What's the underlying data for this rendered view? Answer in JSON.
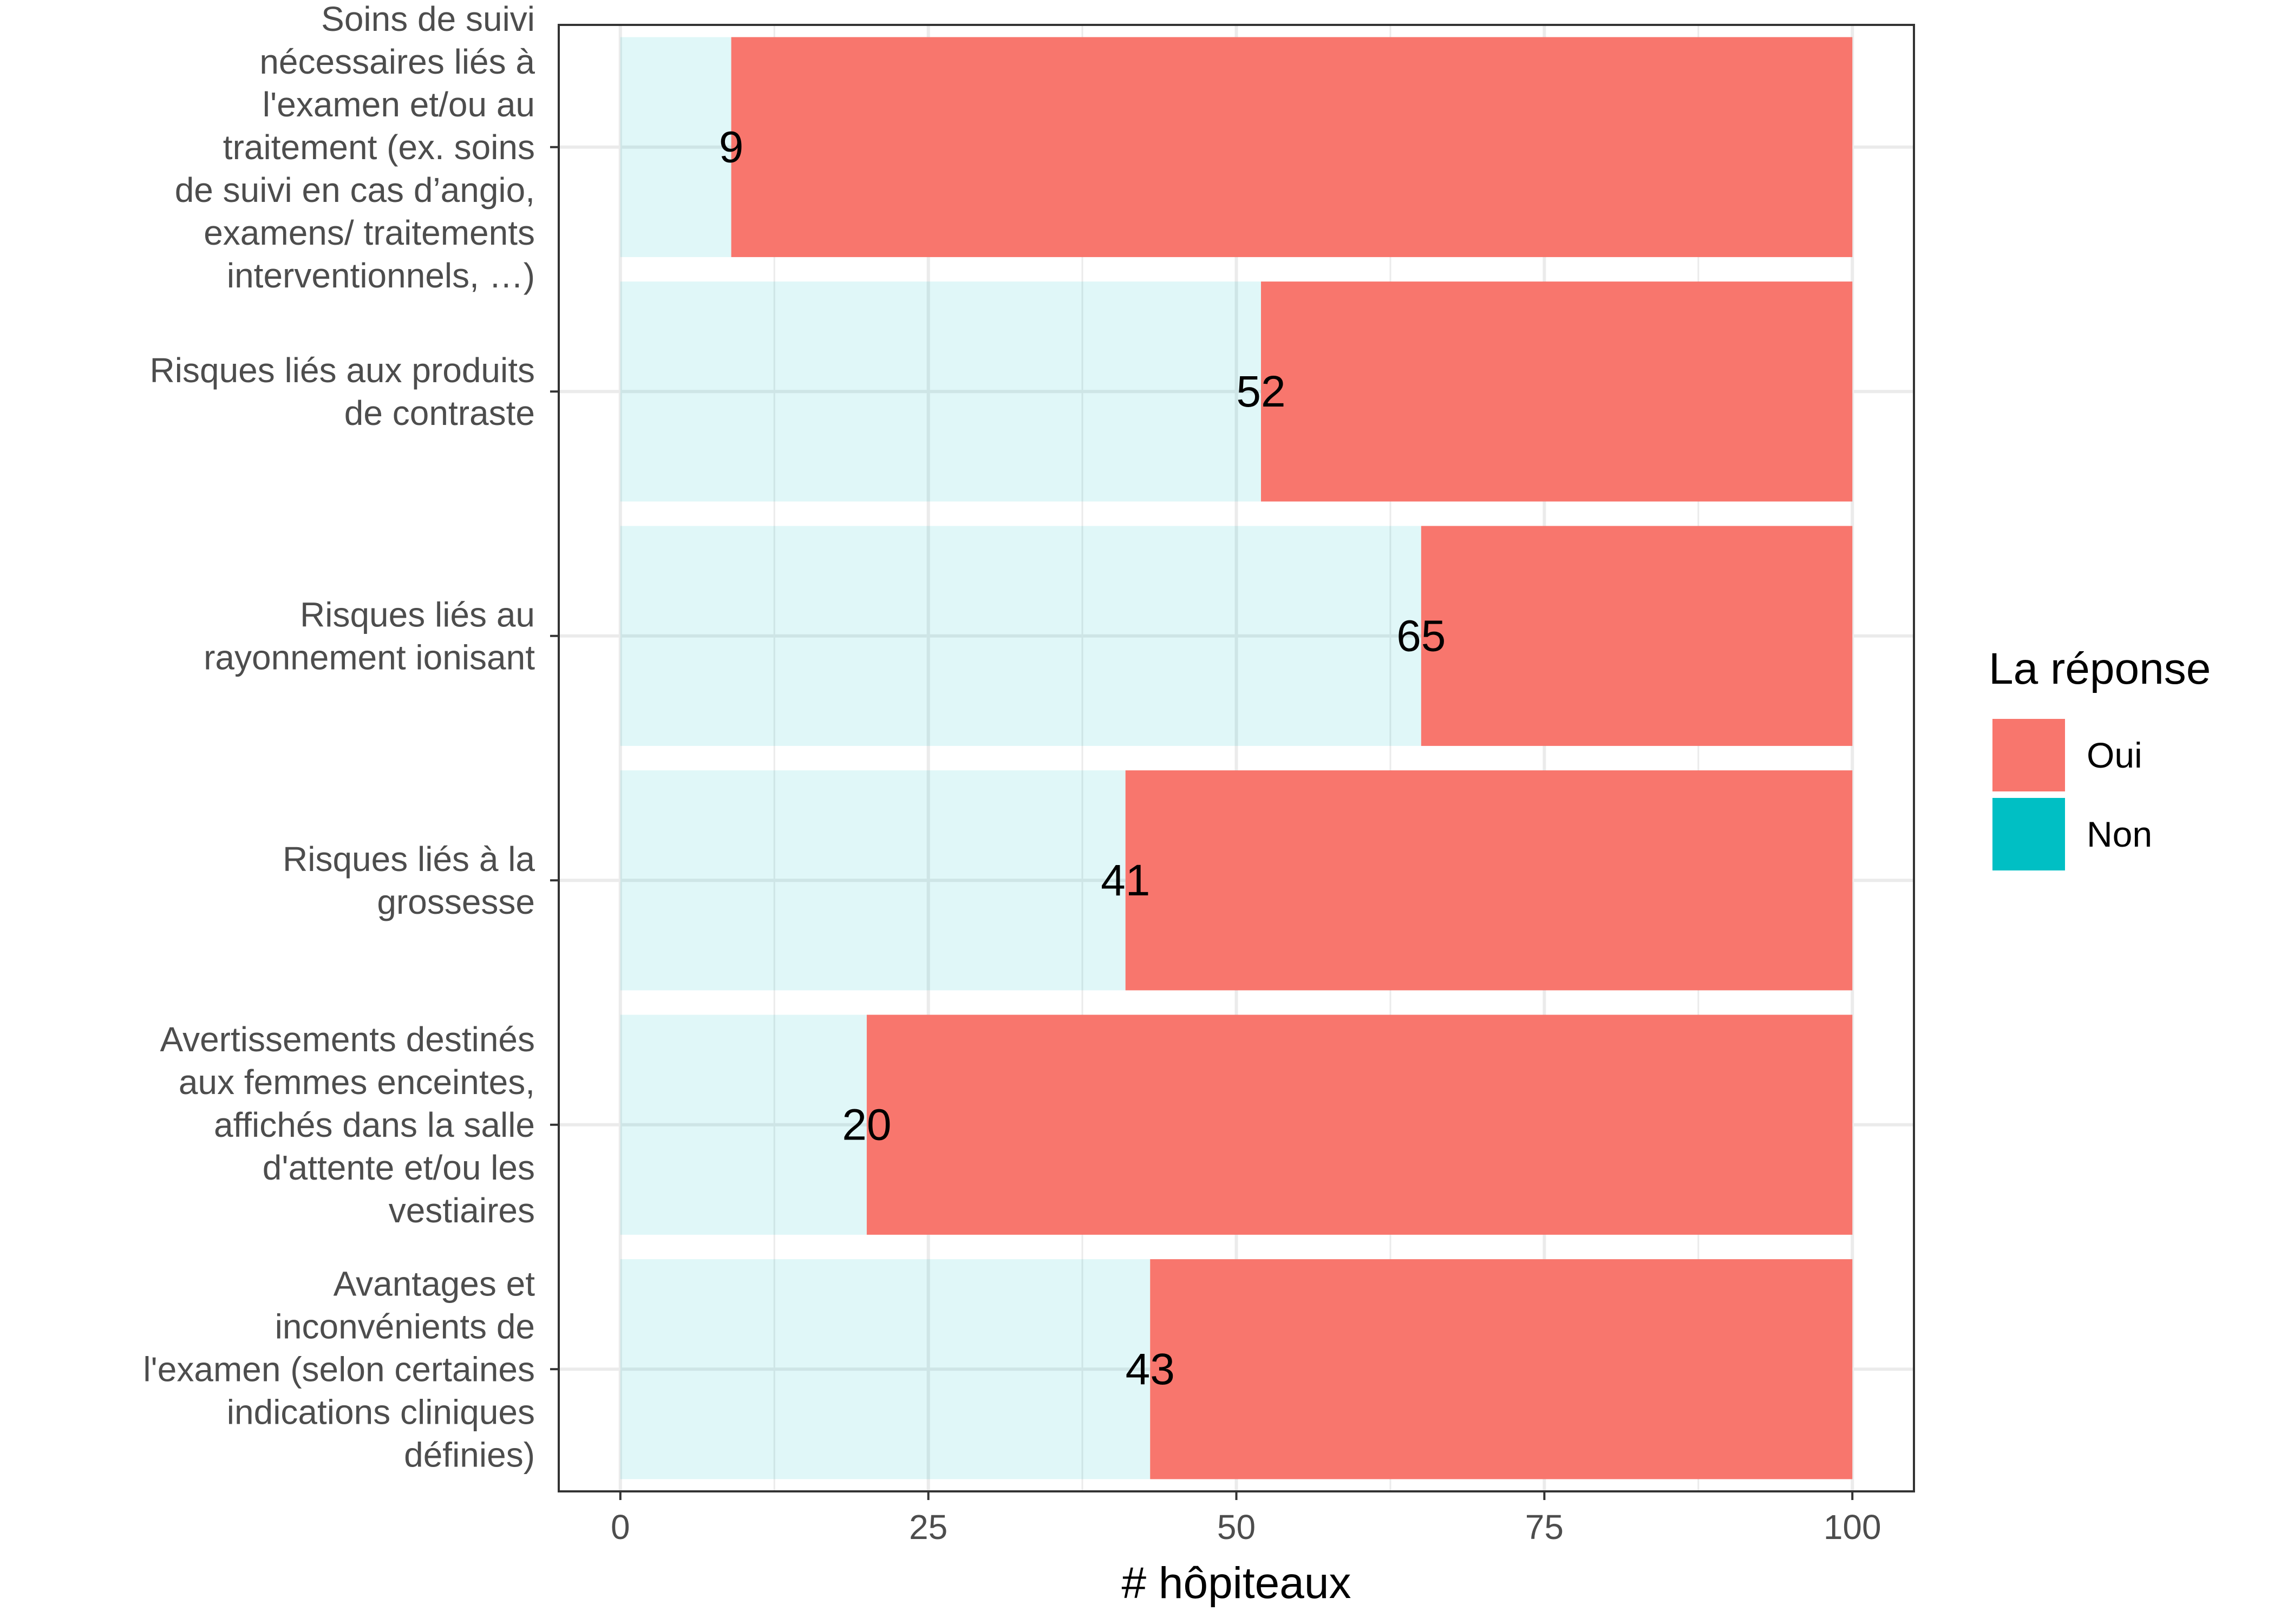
{
  "chart_data": {
    "type": "bar",
    "orientation": "horizontal",
    "stacked": true,
    "categories": [
      "Soins de suivi nécessaires liés à l'examen et/ou au traitement (ex. soins de suivi en cas d’angio, examens/ traitements interventionnels, …)",
      "Risques liés aux produits de contraste",
      "Risques liés au rayonnement ionisant",
      "Risques liés à la grossesse",
      "Avertissements destinés aux femmes enceintes, affichés dans la salle d'attente et/ou les vestiaires",
      "Avantages et inconvénients de l'examen (selon certaines indications cliniques définies)"
    ],
    "category_lines": [
      [
        "Soins de suivi",
        "nécessaires liés à",
        "l'examen et/ou au",
        "traitement (ex. soins",
        "de suivi en cas d’angio,",
        "examens/ traitements",
        "interventionnels, …)"
      ],
      [
        "Risques liés aux produits",
        "de contraste"
      ],
      [
        "Risques liés au",
        "rayonnement ionisant"
      ],
      [
        "Risques liés à la",
        "grossesse"
      ],
      [
        "Avertissements destinés",
        "aux femmes enceintes,",
        "affichés dans la salle",
        "d'attente et/ou les",
        "vestiaires"
      ],
      [
        "Avantages et",
        "inconvénients de",
        "l'examen (selon certaines",
        "indications cliniques",
        "définies)"
      ]
    ],
    "series": [
      {
        "name": "Non",
        "values": [
          9,
          52,
          65,
          41,
          20,
          43
        ],
        "color": "#00BFC4",
        "alpha": 0.12
      },
      {
        "name": "Oui",
        "values": [
          91,
          48,
          35,
          59,
          80,
          57
        ],
        "color": "#F8766D",
        "alpha": 1.0
      }
    ],
    "data_labels": [
      "9",
      "52",
      "65",
      "41",
      "20",
      "43"
    ],
    "xlabel": "# hôpiteaux",
    "ylabel": "",
    "xlim": [
      -5,
      105
    ],
    "x_ticks": [
      0,
      25,
      50,
      75,
      100
    ],
    "x_tick_labels": [
      "0",
      "25",
      "50",
      "75",
      "100"
    ],
    "grid": true,
    "legend": {
      "title": "La réponse",
      "position": "right",
      "entries": [
        {
          "label": "Oui",
          "color": "#F8766D"
        },
        {
          "label": "Non",
          "color": "#00BFC4"
        }
      ]
    }
  }
}
